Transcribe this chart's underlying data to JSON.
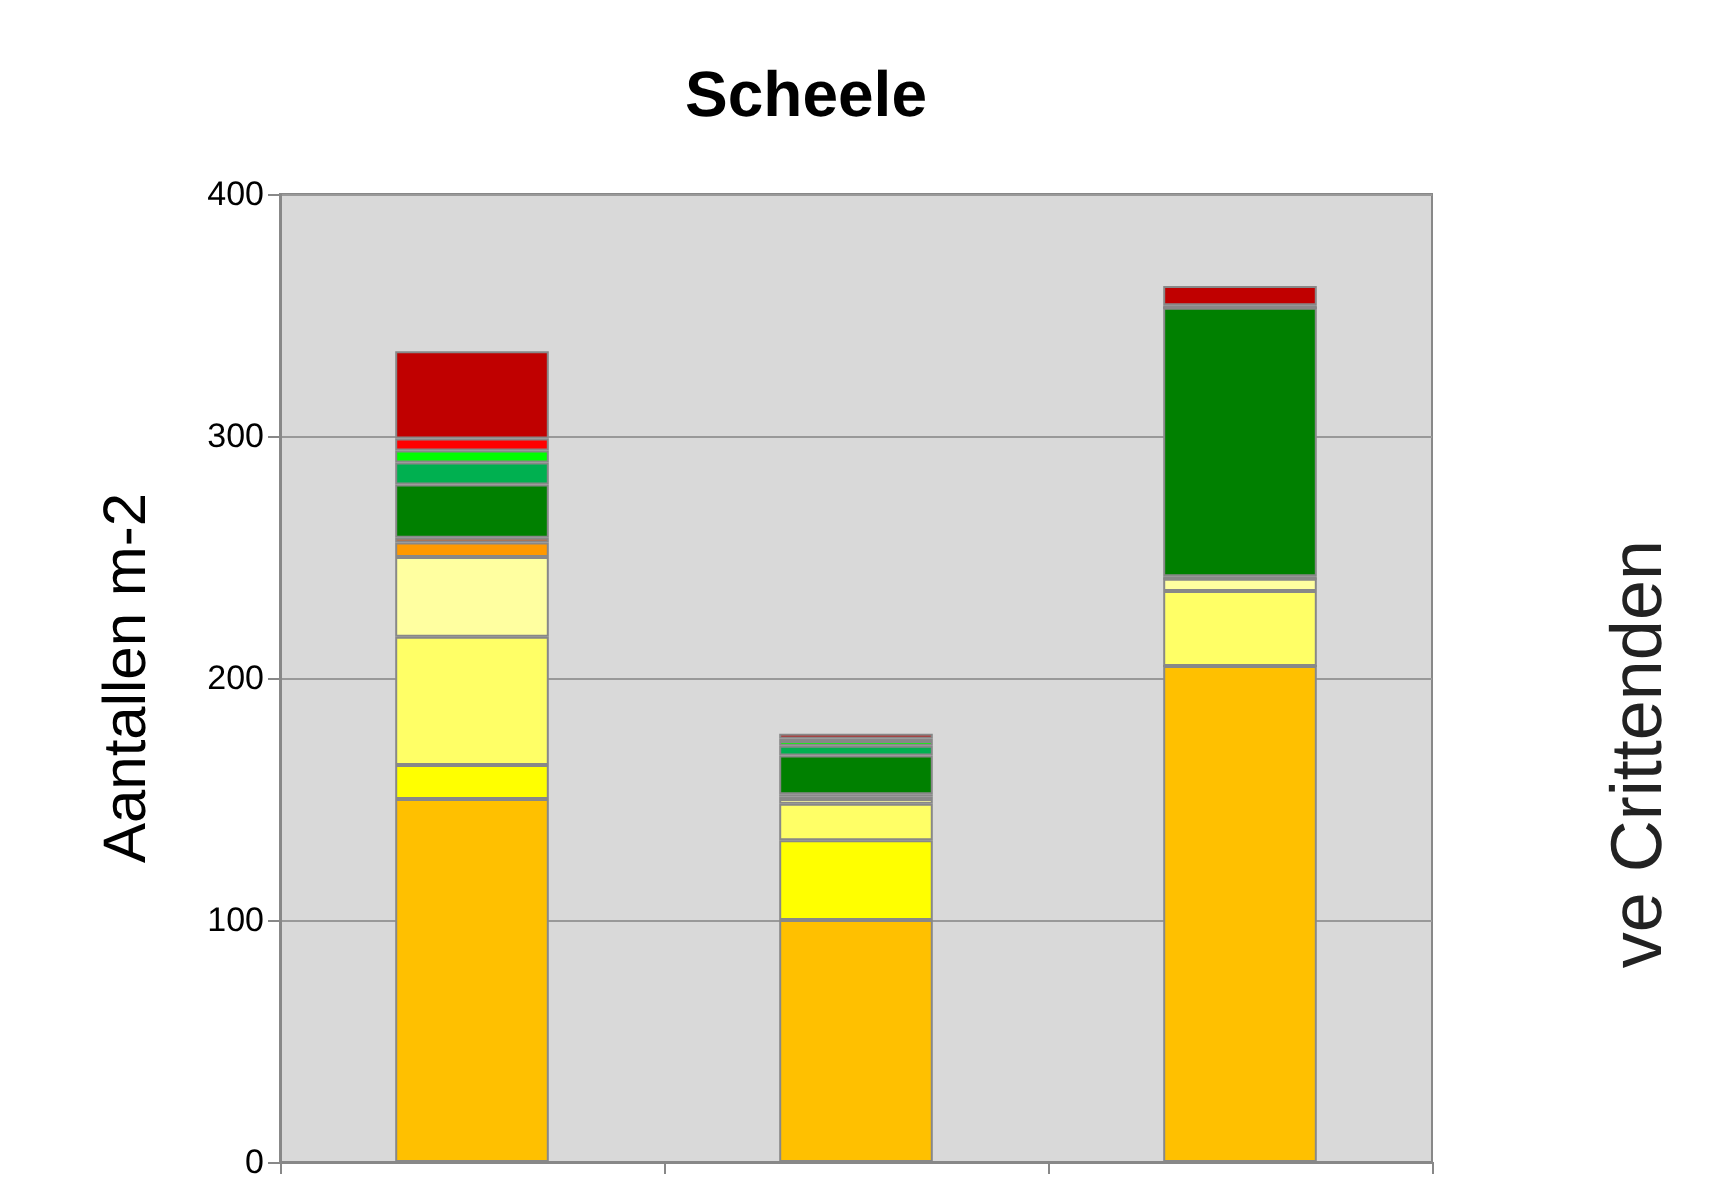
{
  "chart_data": {
    "type": "bar",
    "title": "Scheele",
    "ylabel": "Aantallen m-2",
    "y2label": "ve Crittenden",
    "categories": [
      null,
      null,
      null
    ],
    "stacked": true,
    "grid": "y",
    "ylim": [
      0,
      400
    ],
    "yticks": [
      0,
      100,
      200,
      300,
      400
    ],
    "series": [
      {
        "color": "#ffc000",
        "values": [
          150,
          100,
          205
        ]
      },
      {
        "color": "#ffff00",
        "values": [
          14,
          33,
          0
        ]
      },
      {
        "color": "#ffff66",
        "values": [
          53,
          15,
          31
        ]
      },
      {
        "color": "#ffffa0",
        "values": [
          33,
          2,
          5
        ]
      },
      {
        "color": "#ff9900",
        "values": [
          6,
          1,
          0
        ]
      },
      {
        "color": "#c86428",
        "values": [
          2,
          1,
          1
        ]
      },
      {
        "color": "#008000",
        "values": [
          22,
          16,
          111
        ]
      },
      {
        "color": "#00b050",
        "values": [
          9,
          4,
          0
        ]
      },
      {
        "color": "#00ff00",
        "values": [
          5,
          2,
          0
        ]
      },
      {
        "color": "#ff0000",
        "values": [
          5,
          1,
          1
        ]
      },
      {
        "color": "#c00000",
        "values": [
          36,
          2,
          8
        ]
      }
    ]
  }
}
